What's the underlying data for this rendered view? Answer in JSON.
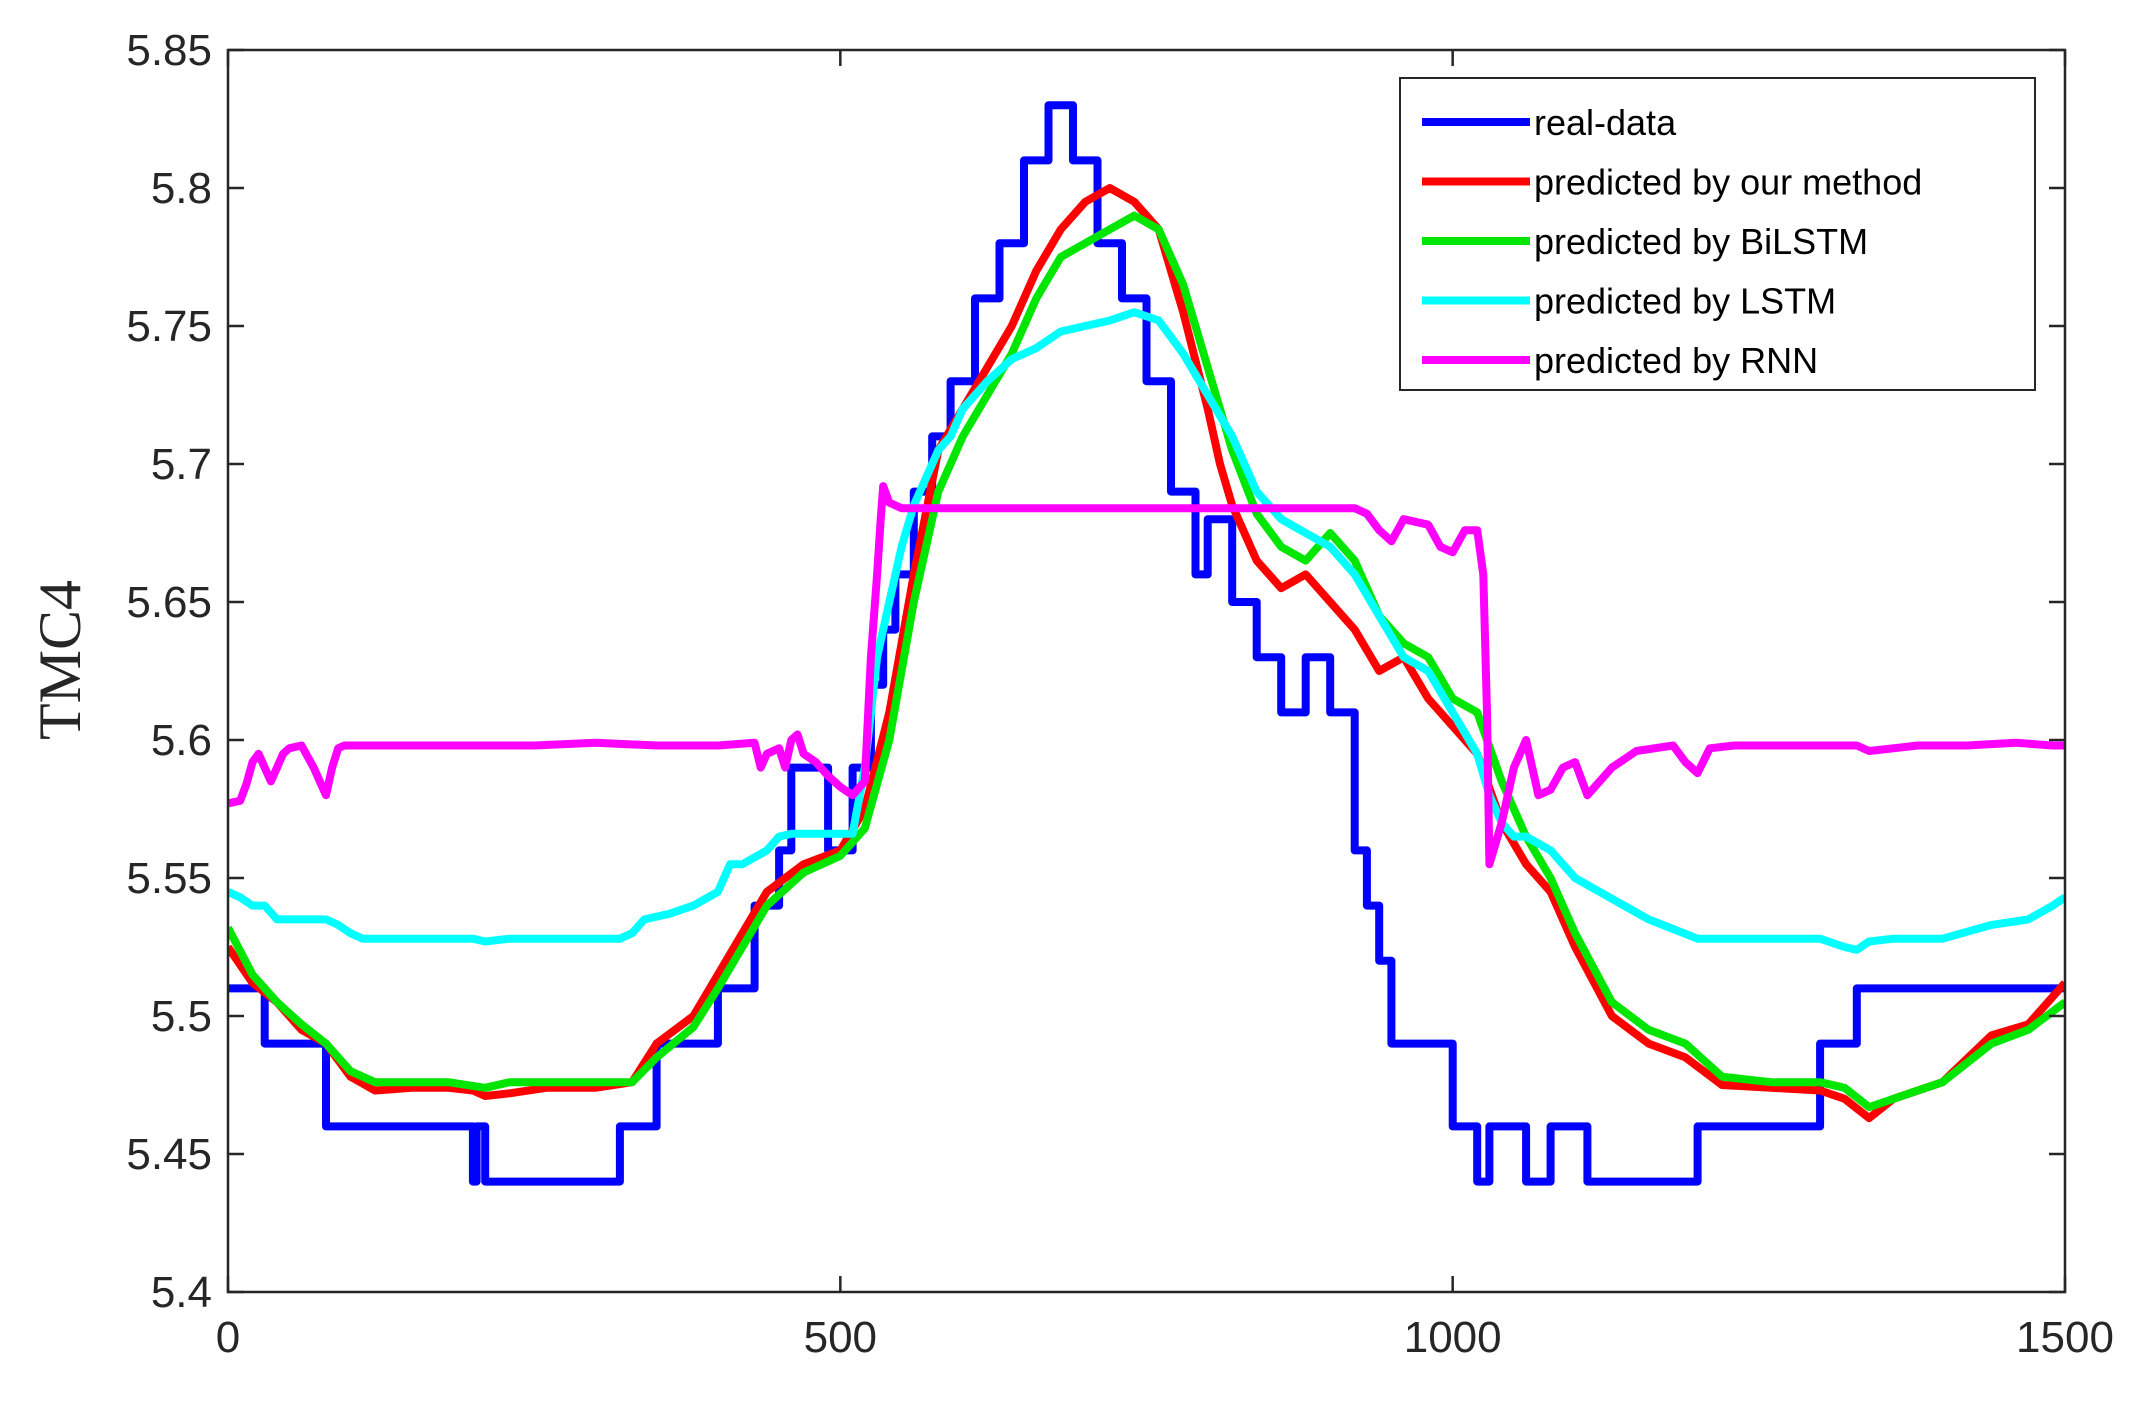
{
  "chart_data": {
    "type": "line",
    "title": "",
    "xlabel": "",
    "ylabel": "TMC4",
    "xlim": [
      0,
      1500
    ],
    "ylim": [
      5.4,
      5.85
    ],
    "xticks": [
      0,
      500,
      1000,
      1500
    ],
    "yticks": [
      5.4,
      5.45,
      5.5,
      5.55,
      5.6,
      5.65,
      5.7,
      5.75,
      5.8,
      5.85
    ],
    "xtick_labels": [
      "0",
      "500",
      "1000",
      "1500"
    ],
    "ytick_labels": [
      "5.4",
      "5.45",
      "5.5",
      "5.55",
      "5.6",
      "5.65",
      "5.7",
      "5.75",
      "5.8",
      "5.85"
    ],
    "grid": false,
    "legend_position": "top-right",
    "series": [
      {
        "name": "real-data",
        "color": "#0000ff",
        "x": [
          0,
          30,
          30,
          80,
          80,
          200,
          200,
          203,
          203,
          210,
          210,
          320,
          320,
          350,
          350,
          400,
          400,
          430,
          430,
          450,
          450,
          460,
          460,
          490,
          490,
          510,
          510,
          525,
          525,
          535,
          535,
          545,
          545,
          560,
          560,
          575,
          575,
          590,
          590,
          610,
          610,
          630,
          630,
          650,
          650,
          670,
          670,
          690,
          690,
          710,
          710,
          730,
          730,
          750,
          750,
          770,
          770,
          790,
          790,
          800,
          800,
          820,
          820,
          840,
          840,
          860,
          860,
          880,
          880,
          900,
          900,
          920,
          920,
          930,
          930,
          940,
          940,
          950,
          950,
          1000,
          1000,
          1020,
          1020,
          1030,
          1030,
          1060,
          1060,
          1080,
          1080,
          1110,
          1110,
          1130,
          1130,
          1200,
          1200,
          1300,
          1300,
          1305,
          1305,
          1310,
          1310,
          1320,
          1320,
          1330,
          1330,
          1335,
          1335,
          1340,
          1340,
          1350,
          1350,
          1355,
          1355,
          1360,
          1360,
          1420,
          1420,
          1460,
          1460,
          1500
        ],
        "values": [
          5.51,
          5.51,
          5.49,
          5.49,
          5.46,
          5.46,
          5.44,
          5.44,
          5.46,
          5.46,
          5.44,
          5.44,
          5.46,
          5.46,
          5.49,
          5.49,
          5.51,
          5.51,
          5.54,
          5.54,
          5.56,
          5.56,
          5.59,
          5.59,
          5.56,
          5.56,
          5.59,
          5.59,
          5.62,
          5.62,
          5.64,
          5.64,
          5.66,
          5.66,
          5.69,
          5.69,
          5.71,
          5.71,
          5.73,
          5.73,
          5.76,
          5.76,
          5.78,
          5.78,
          5.81,
          5.81,
          5.83,
          5.83,
          5.81,
          5.81,
          5.78,
          5.78,
          5.76,
          5.76,
          5.73,
          5.73,
          5.69,
          5.69,
          5.66,
          5.66,
          5.68,
          5.68,
          5.65,
          5.65,
          5.63,
          5.63,
          5.61,
          5.61,
          5.63,
          5.63,
          5.61,
          5.61,
          5.56,
          5.56,
          5.54,
          5.54,
          5.52,
          5.52,
          5.49,
          5.49,
          5.46,
          5.46,
          5.44,
          5.44,
          5.46,
          5.46,
          5.44,
          5.44,
          5.46,
          5.46,
          5.44,
          5.44,
          5.44,
          5.44,
          5.46,
          5.46,
          5.49,
          5.49,
          5.49,
          5.49,
          5.49,
          5.49,
          5.49,
          5.49,
          5.51,
          5.51,
          5.51,
          5.51,
          5.51,
          5.51,
          5.51,
          5.51,
          5.51,
          5.51,
          5.51,
          5.51,
          5.51,
          5.51,
          5.51,
          5.51
        ]
      },
      {
        "name": "predicted by our method",
        "color": "#ff0000",
        "x": [
          0,
          20,
          40,
          60,
          80,
          100,
          120,
          150,
          180,
          200,
          210,
          230,
          260,
          300,
          330,
          350,
          380,
          400,
          420,
          440,
          470,
          500,
          520,
          540,
          560,
          580,
          600,
          620,
          640,
          660,
          680,
          700,
          720,
          740,
          760,
          780,
          800,
          810,
          820,
          840,
          860,
          880,
          900,
          920,
          940,
          960,
          980,
          1000,
          1020,
          1040,
          1060,
          1080,
          1100,
          1130,
          1160,
          1190,
          1220,
          1260,
          1300,
          1320,
          1340,
          1360,
          1400,
          1440,
          1470,
          1500
        ],
        "values": [
          5.525,
          5.512,
          5.505,
          5.495,
          5.49,
          5.478,
          5.473,
          5.474,
          5.474,
          5.473,
          5.471,
          5.472,
          5.474,
          5.474,
          5.476,
          5.49,
          5.5,
          5.515,
          5.53,
          5.545,
          5.555,
          5.56,
          5.575,
          5.61,
          5.66,
          5.705,
          5.72,
          5.735,
          5.75,
          5.77,
          5.785,
          5.795,
          5.8,
          5.795,
          5.785,
          5.755,
          5.72,
          5.7,
          5.685,
          5.665,
          5.655,
          5.66,
          5.65,
          5.64,
          5.625,
          5.63,
          5.615,
          5.605,
          5.595,
          5.57,
          5.555,
          5.545,
          5.525,
          5.5,
          5.49,
          5.485,
          5.475,
          5.474,
          5.473,
          5.47,
          5.463,
          5.47,
          5.476,
          5.493,
          5.497,
          5.512
        ]
      },
      {
        "name": "predicted by BiLSTM",
        "color": "#00e600",
        "x": [
          0,
          20,
          40,
          60,
          80,
          100,
          120,
          150,
          180,
          210,
          230,
          260,
          300,
          330,
          350,
          380,
          400,
          420,
          440,
          470,
          500,
          520,
          540,
          560,
          580,
          600,
          620,
          640,
          660,
          680,
          700,
          720,
          740,
          760,
          780,
          800,
          820,
          840,
          860,
          880,
          900,
          920,
          940,
          960,
          980,
          1000,
          1020,
          1040,
          1060,
          1080,
          1100,
          1130,
          1160,
          1190,
          1220,
          1260,
          1300,
          1320,
          1340,
          1360,
          1400,
          1440,
          1470,
          1500
        ],
        "values": [
          5.532,
          5.515,
          5.505,
          5.497,
          5.49,
          5.48,
          5.476,
          5.476,
          5.476,
          5.474,
          5.476,
          5.476,
          5.476,
          5.476,
          5.485,
          5.496,
          5.51,
          5.525,
          5.54,
          5.552,
          5.558,
          5.568,
          5.6,
          5.65,
          5.69,
          5.71,
          5.725,
          5.74,
          5.76,
          5.775,
          5.78,
          5.785,
          5.79,
          5.785,
          5.765,
          5.735,
          5.705,
          5.682,
          5.67,
          5.665,
          5.675,
          5.665,
          5.645,
          5.635,
          5.63,
          5.615,
          5.61,
          5.585,
          5.565,
          5.55,
          5.53,
          5.505,
          5.495,
          5.49,
          5.478,
          5.476,
          5.476,
          5.474,
          5.467,
          5.47,
          5.476,
          5.49,
          5.495,
          5.505
        ]
      },
      {
        "name": "predicted by LSTM",
        "color": "#00ffff",
        "x": [
          0,
          10,
          20,
          30,
          40,
          60,
          80,
          90,
          100,
          110,
          150,
          200,
          210,
          230,
          260,
          300,
          320,
          330,
          340,
          360,
          380,
          400,
          410,
          420,
          440,
          450,
          460,
          470,
          500,
          510,
          520,
          530,
          540,
          550,
          560,
          570,
          580,
          590,
          600,
          620,
          640,
          660,
          680,
          700,
          720,
          740,
          760,
          780,
          800,
          820,
          840,
          860,
          880,
          900,
          920,
          940,
          960,
          980,
          1000,
          1020,
          1030,
          1040,
          1050,
          1060,
          1080,
          1100,
          1120,
          1140,
          1160,
          1200,
          1260,
          1300,
          1320,
          1330,
          1340,
          1360,
          1400,
          1440,
          1470,
          1490,
          1500
        ],
        "values": [
          5.545,
          5.543,
          5.54,
          5.54,
          5.535,
          5.535,
          5.535,
          5.533,
          5.53,
          5.528,
          5.528,
          5.528,
          5.527,
          5.528,
          5.528,
          5.528,
          5.528,
          5.53,
          5.535,
          5.537,
          5.54,
          5.545,
          5.555,
          5.555,
          5.56,
          5.565,
          5.566,
          5.566,
          5.566,
          5.566,
          5.59,
          5.63,
          5.65,
          5.67,
          5.685,
          5.695,
          5.705,
          5.71,
          5.72,
          5.73,
          5.738,
          5.742,
          5.748,
          5.75,
          5.752,
          5.755,
          5.752,
          5.74,
          5.725,
          5.71,
          5.69,
          5.68,
          5.675,
          5.67,
          5.66,
          5.645,
          5.63,
          5.625,
          5.61,
          5.595,
          5.58,
          5.57,
          5.565,
          5.565,
          5.56,
          5.55,
          5.545,
          5.54,
          5.535,
          5.528,
          5.528,
          5.528,
          5.525,
          5.524,
          5.527,
          5.528,
          5.528,
          5.533,
          5.535,
          5.54,
          5.543
        ]
      },
      {
        "name": "predicted by RNN",
        "color": "#ff00ff",
        "x": [
          0,
          10,
          15,
          20,
          25,
          30,
          35,
          40,
          45,
          50,
          60,
          70,
          80,
          85,
          90,
          95,
          100,
          110,
          130,
          150,
          200,
          250,
          300,
          350,
          400,
          430,
          435,
          440,
          450,
          455,
          460,
          465,
          470,
          480,
          490,
          500,
          510,
          520,
          525,
          530,
          533,
          535,
          540,
          550,
          600,
          650,
          700,
          750,
          800,
          850,
          900,
          920,
          930,
          940,
          950,
          960,
          980,
          990,
          1000,
          1010,
          1020,
          1025,
          1028,
          1030,
          1040,
          1050,
          1060,
          1070,
          1080,
          1090,
          1100,
          1110,
          1130,
          1150,
          1180,
          1190,
          1200,
          1210,
          1230,
          1260,
          1300,
          1330,
          1340,
          1380,
          1420,
          1460,
          1490,
          1500
        ],
        "values": [
          5.577,
          5.578,
          5.584,
          5.592,
          5.595,
          5.59,
          5.585,
          5.59,
          5.595,
          5.597,
          5.598,
          5.59,
          5.58,
          5.59,
          5.597,
          5.598,
          5.598,
          5.598,
          5.598,
          5.598,
          5.598,
          5.598,
          5.599,
          5.598,
          5.598,
          5.599,
          5.59,
          5.595,
          5.597,
          5.59,
          5.6,
          5.602,
          5.595,
          5.592,
          5.587,
          5.583,
          5.58,
          5.585,
          5.63,
          5.66,
          5.68,
          5.692,
          5.686,
          5.684,
          5.684,
          5.684,
          5.684,
          5.684,
          5.684,
          5.684,
          5.684,
          5.684,
          5.682,
          5.676,
          5.672,
          5.68,
          5.678,
          5.67,
          5.668,
          5.676,
          5.676,
          5.66,
          5.61,
          5.555,
          5.57,
          5.59,
          5.6,
          5.58,
          5.582,
          5.59,
          5.592,
          5.58,
          5.59,
          5.596,
          5.598,
          5.592,
          5.588,
          5.597,
          5.598,
          5.598,
          5.598,
          5.598,
          5.596,
          5.598,
          5.598,
          5.599,
          5.598,
          5.598
        ]
      }
    ]
  }
}
